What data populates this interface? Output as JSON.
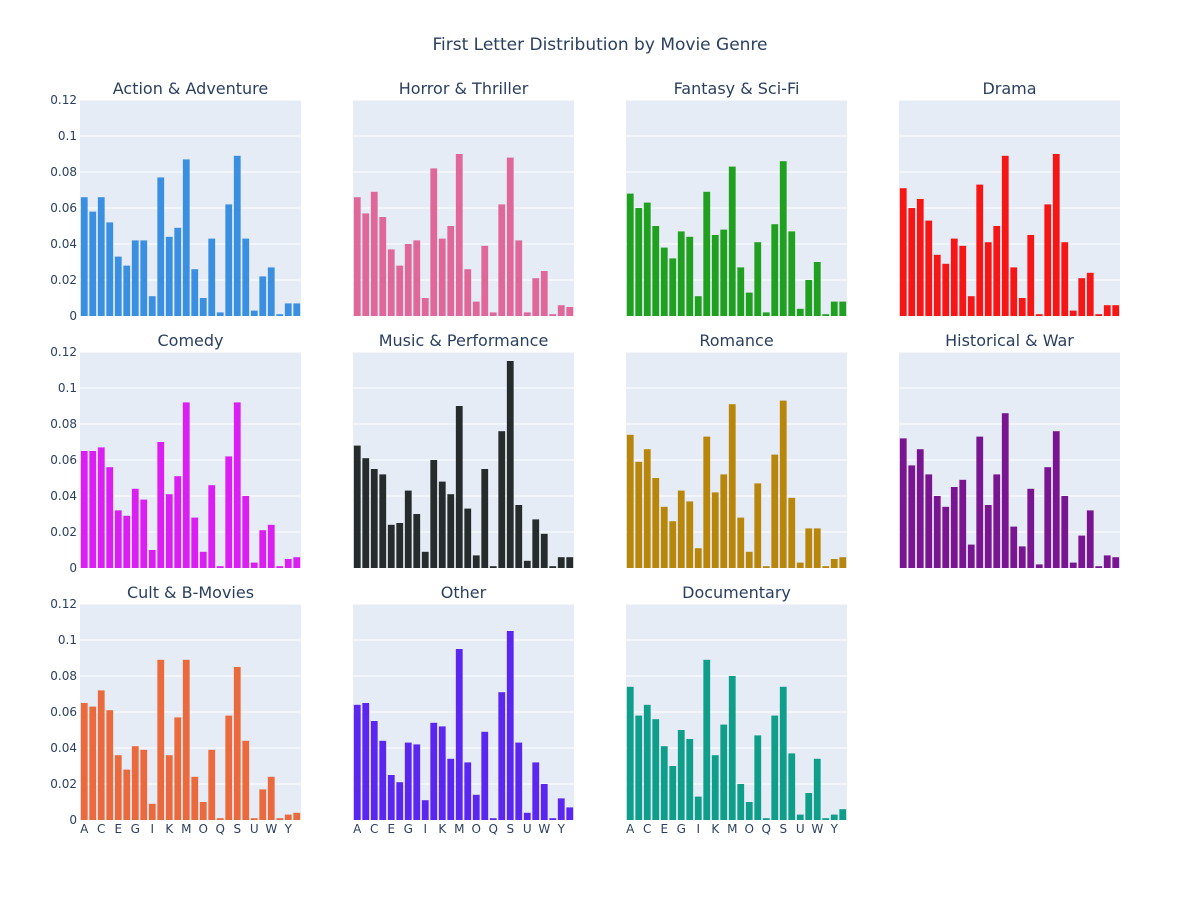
{
  "chart_data": {
    "type": "bar",
    "title": "First Letter Distribution by Movie Genre",
    "categories": [
      "A",
      "B",
      "C",
      "D",
      "E",
      "F",
      "G",
      "H",
      "I",
      "J",
      "K",
      "L",
      "M",
      "N",
      "O",
      "P",
      "Q",
      "R",
      "S",
      "T",
      "U",
      "V",
      "W",
      "X",
      "Y",
      "Z"
    ],
    "x_tick_labels": [
      "A",
      "C",
      "E",
      "G",
      "I",
      "K",
      "M",
      "O",
      "Q",
      "S",
      "U",
      "W",
      "Y"
    ],
    "ylim": [
      0,
      0.12
    ],
    "y_tick_labels": [
      "0",
      "0.02",
      "0.04",
      "0.06",
      "0.08",
      "0.1",
      "0.12"
    ],
    "y_ticks": [
      0,
      0.02,
      0.04,
      0.06,
      0.08,
      0.1,
      0.12
    ],
    "grid": true,
    "panels": [
      {
        "name": "Action & Adventure",
        "color": "#3a8fe0",
        "values": [
          0.066,
          0.058,
          0.066,
          0.052,
          0.033,
          0.028,
          0.042,
          0.042,
          0.011,
          0.077,
          0.044,
          0.049,
          0.087,
          0.026,
          0.01,
          0.043,
          0.002,
          0.062,
          0.089,
          0.043,
          0.003,
          0.022,
          0.027,
          0.001,
          0.007,
          0.007
        ]
      },
      {
        "name": "Horror & Thriller",
        "color": "#e0679a",
        "values": [
          0.066,
          0.057,
          0.069,
          0.055,
          0.037,
          0.028,
          0.04,
          0.042,
          0.01,
          0.082,
          0.043,
          0.05,
          0.09,
          0.026,
          0.008,
          0.039,
          0.002,
          0.062,
          0.088,
          0.042,
          0.002,
          0.021,
          0.025,
          0.001,
          0.006,
          0.005
        ]
      },
      {
        "name": "Fantasy & Sci-Fi",
        "color": "#1fa01f",
        "values": [
          0.068,
          0.06,
          0.063,
          0.05,
          0.038,
          0.032,
          0.047,
          0.044,
          0.011,
          0.069,
          0.045,
          0.048,
          0.083,
          0.027,
          0.013,
          0.041,
          0.002,
          0.051,
          0.086,
          0.047,
          0.004,
          0.02,
          0.03,
          0.001,
          0.008,
          0.008
        ]
      },
      {
        "name": "Drama",
        "color": "#f71616",
        "values": [
          0.071,
          0.06,
          0.065,
          0.053,
          0.034,
          0.029,
          0.043,
          0.039,
          0.011,
          0.073,
          0.041,
          0.05,
          0.089,
          0.027,
          0.01,
          0.045,
          0.001,
          0.062,
          0.09,
          0.041,
          0.003,
          0.021,
          0.024,
          0.001,
          0.006,
          0.006
        ]
      },
      {
        "name": "Comedy",
        "color": "#db1ef2",
        "values": [
          0.065,
          0.065,
          0.067,
          0.056,
          0.032,
          0.029,
          0.044,
          0.038,
          0.01,
          0.07,
          0.041,
          0.051,
          0.092,
          0.028,
          0.009,
          0.046,
          0.001,
          0.062,
          0.092,
          0.04,
          0.003,
          0.021,
          0.024,
          0.001,
          0.005,
          0.006
        ]
      },
      {
        "name": "Music & Performance",
        "color": "#262b2b",
        "values": [
          0.068,
          0.061,
          0.055,
          0.052,
          0.024,
          0.025,
          0.043,
          0.03,
          0.009,
          0.06,
          0.048,
          0.041,
          0.09,
          0.033,
          0.007,
          0.055,
          0.001,
          0.076,
          0.115,
          0.035,
          0.004,
          0.027,
          0.019,
          0.001,
          0.006,
          0.006
        ]
      },
      {
        "name": "Romance",
        "color": "#b8860b",
        "values": [
          0.074,
          0.059,
          0.066,
          0.05,
          0.034,
          0.026,
          0.043,
          0.037,
          0.011,
          0.073,
          0.042,
          0.052,
          0.091,
          0.028,
          0.009,
          0.047,
          0.001,
          0.063,
          0.093,
          0.039,
          0.003,
          0.022,
          0.022,
          0.001,
          0.005,
          0.006
        ]
      },
      {
        "name": "Historical & War",
        "color": "#7a1592",
        "values": [
          0.072,
          0.057,
          0.066,
          0.052,
          0.04,
          0.034,
          0.045,
          0.049,
          0.013,
          0.073,
          0.035,
          0.052,
          0.086,
          0.023,
          0.012,
          0.044,
          0.002,
          0.056,
          0.076,
          0.04,
          0.003,
          0.018,
          0.032,
          0.001,
          0.007,
          0.006
        ]
      },
      {
        "name": "Cult & B-Movies",
        "color": "#eb6a3d",
        "values": [
          0.065,
          0.063,
          0.072,
          0.061,
          0.036,
          0.028,
          0.041,
          0.039,
          0.009,
          0.089,
          0.036,
          0.057,
          0.089,
          0.024,
          0.01,
          0.039,
          0.001,
          0.058,
          0.085,
          0.044,
          0.001,
          0.017,
          0.024,
          0.001,
          0.003,
          0.004
        ]
      },
      {
        "name": "Other",
        "color": "#5a26f0",
        "values": [
          0.064,
          0.065,
          0.055,
          0.044,
          0.025,
          0.021,
          0.043,
          0.042,
          0.011,
          0.054,
          0.052,
          0.034,
          0.095,
          0.032,
          0.014,
          0.049,
          0.001,
          0.071,
          0.105,
          0.043,
          0.004,
          0.032,
          0.02,
          0.001,
          0.012,
          0.007
        ]
      },
      {
        "name": "Documentary",
        "color": "#0e9e8a",
        "values": [
          0.074,
          0.058,
          0.064,
          0.056,
          0.041,
          0.03,
          0.05,
          0.045,
          0.013,
          0.089,
          0.036,
          0.053,
          0.08,
          0.02,
          0.01,
          0.047,
          0.001,
          0.058,
          0.074,
          0.037,
          0.003,
          0.015,
          0.034,
          0.001,
          0.003,
          0.006
        ]
      }
    ]
  }
}
